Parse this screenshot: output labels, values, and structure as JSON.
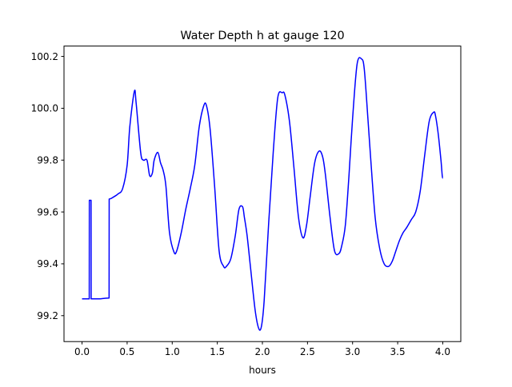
{
  "chart_data": {
    "type": "line",
    "title": "Water Depth h at gauge 120",
    "xlabel": "hours",
    "ylabel": "",
    "xlim": [
      -0.2,
      4.2
    ],
    "ylim": [
      99.1,
      100.24
    ],
    "xticks": [
      0.0,
      0.5,
      1.0,
      1.5,
      2.0,
      2.5,
      3.0,
      3.5,
      4.0
    ],
    "xtick_labels": [
      "0.0",
      "0.5",
      "1.0",
      "1.5",
      "2.0",
      "2.5",
      "3.0",
      "3.5",
      "4.0"
    ],
    "yticks": [
      99.2,
      99.4,
      99.6,
      99.8,
      100.0,
      100.2
    ],
    "ytick_labels": [
      "99.2",
      "99.4",
      "99.6",
      "99.8",
      "100.0",
      "100.2"
    ],
    "grid": false,
    "legend": "none",
    "series": [
      {
        "color": "#0000ff",
        "x": [
          0.0,
          0.08,
          0.081,
          0.1,
          0.101,
          0.12,
          0.2,
          0.3,
          0.301,
          0.35,
          0.4,
          0.45,
          0.5,
          0.53,
          0.58,
          0.6,
          0.65,
          0.68,
          0.72,
          0.75,
          0.78,
          0.8,
          0.84,
          0.87,
          0.9,
          0.93,
          0.97,
          1.02,
          1.05,
          1.1,
          1.15,
          1.2,
          1.25,
          1.3,
          1.35,
          1.38,
          1.42,
          1.47,
          1.52,
          1.57,
          1.6,
          1.65,
          1.7,
          1.74,
          1.78,
          1.8,
          1.83,
          1.87,
          1.92,
          1.96,
          1.99,
          2.02,
          2.07,
          2.12,
          2.17,
          2.22,
          2.25,
          2.3,
          2.35,
          2.4,
          2.45,
          2.49,
          2.53,
          2.58,
          2.63,
          2.67,
          2.7,
          2.75,
          2.8,
          2.85,
          2.88,
          2.92,
          2.96,
          3.0,
          3.05,
          3.1,
          3.13,
          3.17,
          3.2,
          3.25,
          3.3,
          3.35,
          3.4,
          3.44,
          3.48,
          3.52,
          3.56,
          3.6,
          3.65,
          3.7,
          3.75,
          3.8,
          3.85,
          3.9,
          3.92,
          3.95,
          3.98,
          4.0
        ],
        "y": [
          99.265,
          99.265,
          99.645,
          99.645,
          99.265,
          99.265,
          99.265,
          99.268,
          99.65,
          99.658,
          99.67,
          99.69,
          99.78,
          99.93,
          100.065,
          100.02,
          99.83,
          99.8,
          99.8,
          99.74,
          99.75,
          99.8,
          99.83,
          99.79,
          99.76,
          99.7,
          99.52,
          99.445,
          99.45,
          99.52,
          99.61,
          99.69,
          99.78,
          99.93,
          100.01,
          100.01,
          99.92,
          99.7,
          99.45,
          99.39,
          99.39,
          99.42,
          99.51,
          99.61,
          99.62,
          99.58,
          99.51,
          99.38,
          99.22,
          99.15,
          99.16,
          99.26,
          99.56,
          99.83,
          100.04,
          100.06,
          100.05,
          99.95,
          99.77,
          99.58,
          99.5,
          99.55,
          99.66,
          99.79,
          99.835,
          99.81,
          99.74,
          99.58,
          99.45,
          99.44,
          99.47,
          99.55,
          99.74,
          99.96,
          100.17,
          100.19,
          100.15,
          99.96,
          99.81,
          99.58,
          99.46,
          99.4,
          99.39,
          99.41,
          99.45,
          99.49,
          99.52,
          99.54,
          99.57,
          99.6,
          99.68,
          99.82,
          99.95,
          99.985,
          99.97,
          99.9,
          99.8,
          99.73
        ]
      }
    ]
  }
}
